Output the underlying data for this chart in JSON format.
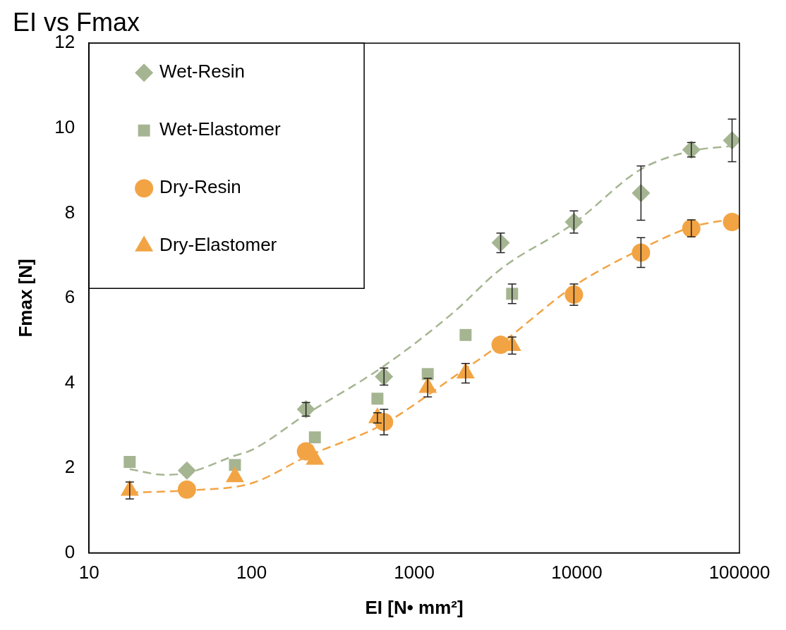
{
  "chart_data": {
    "type": "scatter",
    "title": "EI vs Fmax",
    "xlabel": "EI [N• mm²]",
    "ylabel": "Fmax [N]",
    "log": "x",
    "xlim": [
      10,
      100000
    ],
    "xticks": [
      10,
      100,
      1000,
      10000,
      100000
    ],
    "ylim": [
      0,
      12
    ],
    "yticks": [
      0,
      2,
      4,
      6,
      8,
      10,
      12
    ],
    "grid": false,
    "legend": "top left",
    "series": [
      {
        "name": "Wet-Resin",
        "color": "#a5b592",
        "marker": "diamond",
        "x": [
          40,
          216,
          652,
          3400,
          9600,
          24800,
          50600,
          90100
        ],
        "values": [
          1.94,
          3.38,
          4.15,
          7.3,
          7.79,
          8.47,
          9.49,
          9.71
        ],
        "errors": [
          null,
          0.16,
          0.2,
          0.23,
          0.26,
          0.64,
          0.17,
          0.5
        ]
      },
      {
        "name": "Wet-Elastomer",
        "color": "#a5b592",
        "marker": "square",
        "x": [
          17.8,
          79,
          245,
          594,
          1211,
          2070,
          4000
        ],
        "values": [
          2.14,
          2.07,
          2.72,
          3.63,
          4.21,
          5.13,
          6.1
        ],
        "errors": [
          null,
          null,
          null,
          null,
          null,
          null,
          0.23
        ]
      },
      {
        "name": "Dry-Resin",
        "color": "#f2a444",
        "marker": "circle",
        "x": [
          40,
          216,
          652,
          3400,
          9600,
          24800,
          50600,
          90100
        ],
        "values": [
          1.49,
          2.39,
          3.08,
          4.9,
          6.08,
          7.07,
          7.64,
          7.79
        ],
        "errors": [
          null,
          null,
          0.3,
          null,
          0.25,
          0.35,
          0.2,
          null
        ]
      },
      {
        "name": "Dry-Elastomer",
        "color": "#f2a444",
        "marker": "triangle",
        "x": [
          17.8,
          79,
          245,
          594,
          1211,
          2070,
          4000
        ],
        "values": [
          1.47,
          1.79,
          2.2,
          3.18,
          3.89,
          4.23,
          4.88
        ],
        "errors": [
          0.2,
          null,
          null,
          0.12,
          0.22,
          0.23,
          0.2
        ]
      },
      {
        "type": "line",
        "color": "#a5b592",
        "line_style": "dashed",
        "marker": "none",
        "x": [
          17.8,
          29,
          40,
          79,
          100,
          216,
          652,
          1730,
          3400,
          9600,
          24800,
          50600,
          90100
        ],
        "values": [
          1.97,
          1.84,
          1.88,
          2.29,
          2.42,
          3.26,
          4.4,
          5.65,
          6.68,
          7.76,
          9.03,
          9.46,
          9.58
        ]
      },
      {
        "type": "line",
        "color": "#f2a444",
        "line_style": "dashed",
        "marker": "none",
        "x": [
          17.8,
          40,
          100,
          216,
          652,
          1730,
          3400,
          9600,
          24800,
          50600,
          90100
        ],
        "values": [
          1.42,
          1.47,
          1.64,
          2.26,
          3.04,
          4.13,
          4.92,
          6.28,
          7.15,
          7.67,
          7.86
        ]
      }
    ]
  }
}
